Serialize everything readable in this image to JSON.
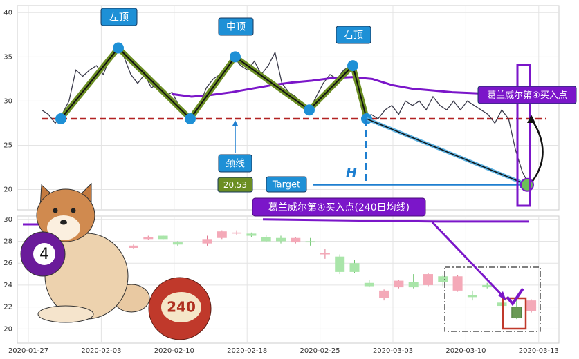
{
  "chart_data": [
    {
      "type": "line",
      "values": [
        29,
        28.5,
        27.5,
        28.5,
        30,
        33.5,
        32.8,
        33.5,
        34,
        33,
        35,
        36,
        35,
        33,
        32,
        33,
        31.5,
        32,
        30.5,
        31,
        29.5,
        28.5,
        28,
        29.5,
        31.5,
        32.5,
        33,
        34,
        35,
        34,
        33.5,
        34.5,
        33,
        34,
        35.5,
        32,
        31,
        30.5,
        29.5,
        29,
        30.5,
        32,
        33,
        32.5,
        33.5,
        34,
        31,
        28,
        28.5,
        28,
        29,
        29.5,
        28.5,
        30,
        29.5,
        30,
        29,
        30.5,
        29.5,
        29,
        30,
        29,
        30,
        29.5,
        29,
        28.5,
        27.5,
        29,
        28,
        24.5,
        22,
        20.5
      ],
      "color": "#3a3a4a",
      "ylim": [
        17.7,
        40.8
      ],
      "yticks": [
        20,
        25,
        30,
        35,
        40
      ],
      "grid": true,
      "pattern": {
        "values": [
          28,
          36,
          28,
          35,
          29,
          34,
          28
        ],
        "color": "#6b8e23"
      },
      "ma": {
        "values": [
          30.8,
          30.5,
          30.7,
          31.0,
          31.4,
          31.8,
          32.1,
          32.3,
          32.6,
          32.7,
          32.5,
          31.8,
          31.4,
          31.2,
          31.0,
          30.9,
          30.8,
          30.7,
          30.6
        ],
        "color": "#7b16c9"
      },
      "neckline": {
        "value": 28,
        "color": "#b22222"
      },
      "target": 20.53,
      "annotations": {
        "left_top": "左顶",
        "middle_top": "中顶",
        "right_top": "右顶",
        "neckline": "颈线",
        "target": "Target",
        "height": "H",
        "buy_point": "葛兰威尔第④买入点"
      }
    },
    {
      "type": "candlestick",
      "open": [
        27.4,
        28.2,
        28.5,
        27.9,
        null,
        27.8,
        28.3,
        28.7,
        28.7,
        28.4,
        28.3,
        27.9,
        28.0,
        26.8,
        26.6,
        26.0,
        24.2,
        22.8,
        23.8,
        24.3,
        24.0,
        24.8,
        23.5,
        23.1,
        24.0,
        22.4,
        22.0,
        21.6
      ],
      "high": [
        27.7,
        28.5,
        28.6,
        28.0,
        null,
        28.5,
        29.0,
        29.0,
        28.8,
        28.6,
        28.5,
        28.4,
        28.3,
        27.3,
        26.8,
        26.3,
        24.5,
        23.6,
        24.5,
        25.0,
        25.1,
        24.9,
        24.9,
        23.5,
        24.2,
        22.9,
        22.7,
        22.7
      ],
      "low": [
        27.3,
        28.1,
        28.1,
        27.6,
        null,
        27.6,
        28.2,
        28.6,
        28.4,
        27.9,
        27.8,
        27.8,
        27.6,
        26.4,
        25.0,
        25.1,
        23.8,
        22.6,
        23.7,
        23.7,
        23.9,
        23.9,
        23.4,
        22.6,
        23.7,
        21.9,
        20.9,
        21.5
      ],
      "close": [
        27.6,
        28.4,
        28.2,
        27.7,
        null,
        28.2,
        28.9,
        28.8,
        28.5,
        28.0,
        28.0,
        28.3,
        27.9,
        26.9,
        25.2,
        25.2,
        23.9,
        23.5,
        24.4,
        23.8,
        25.0,
        24.3,
        24.8,
        22.9,
        23.8,
        22.1,
        21.0,
        22.6
      ],
      "up_color": "#f4a9b8",
      "down_color": "#a9e5a9",
      "ylim": [
        18.7,
        30.3
      ],
      "yticks": [
        20,
        22,
        24,
        26,
        28,
        30
      ],
      "grid": true,
      "xticks": [
        "2020-01-27",
        "2020-02-03",
        "2020-02-10",
        "2020-02-18",
        "2020-02-25",
        "2020-03-03",
        "2020-03-10",
        "2020-03-13"
      ],
      "ma": {
        "name": "240 m",
        "values": [
          30.0,
          29.9,
          29.8,
          29.8
        ],
        "color": "#7b16c9"
      },
      "annotation": "葛兰威尔第④买入点(240日均线)",
      "badges": [
        "4",
        "240"
      ]
    }
  ]
}
